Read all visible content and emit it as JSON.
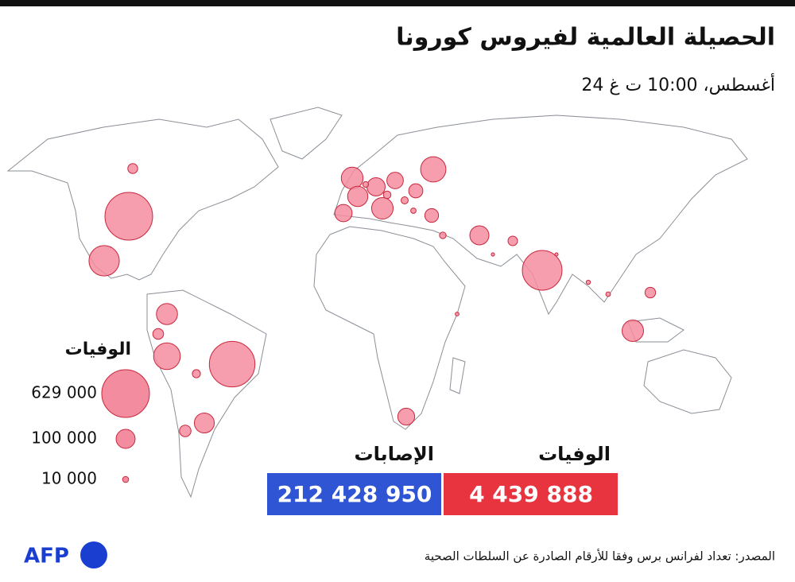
{
  "header": {
    "title": "الحصيلة العالمية لفيروس كورونا",
    "subtitle": "24 أغسطس، 10:00 ت غ"
  },
  "map": {
    "bubbles": [
      629000,
      575000,
      435000,
      254000,
      197000,
      177000,
      131000,
      128000,
      127000,
      123000,
      113000,
      110000,
      101000,
      92000,
      83000,
      79000,
      75000,
      55000,
      52000,
      37000,
      32000,
      31000,
      27000,
      25000,
      18000,
      16000,
      14000,
      12000,
      9000,
      8000,
      6000,
      5000,
      4000,
      3000,
      2000
    ]
  },
  "legend": {
    "title": "الوفيات",
    "sizes": [
      {
        "value": 629000,
        "label": "629 000"
      },
      {
        "value": 100000,
        "label": "100 000"
      },
      {
        "value": 10000,
        "label": "10 000"
      }
    ]
  },
  "totals": [
    {
      "name": "الإصابات",
      "value": 212428950,
      "value_label": "212 428 950",
      "color": "#2f55d4"
    },
    {
      "name": "الوفيات",
      "value": 4439888,
      "value_label": "4 439 888",
      "color": "#e8343f"
    }
  ],
  "footer": {
    "source": "المصدر: تعداد لفرانس برس وفقا للأرقام الصادرة عن السلطات الصحية",
    "logo": "AFP"
  }
}
